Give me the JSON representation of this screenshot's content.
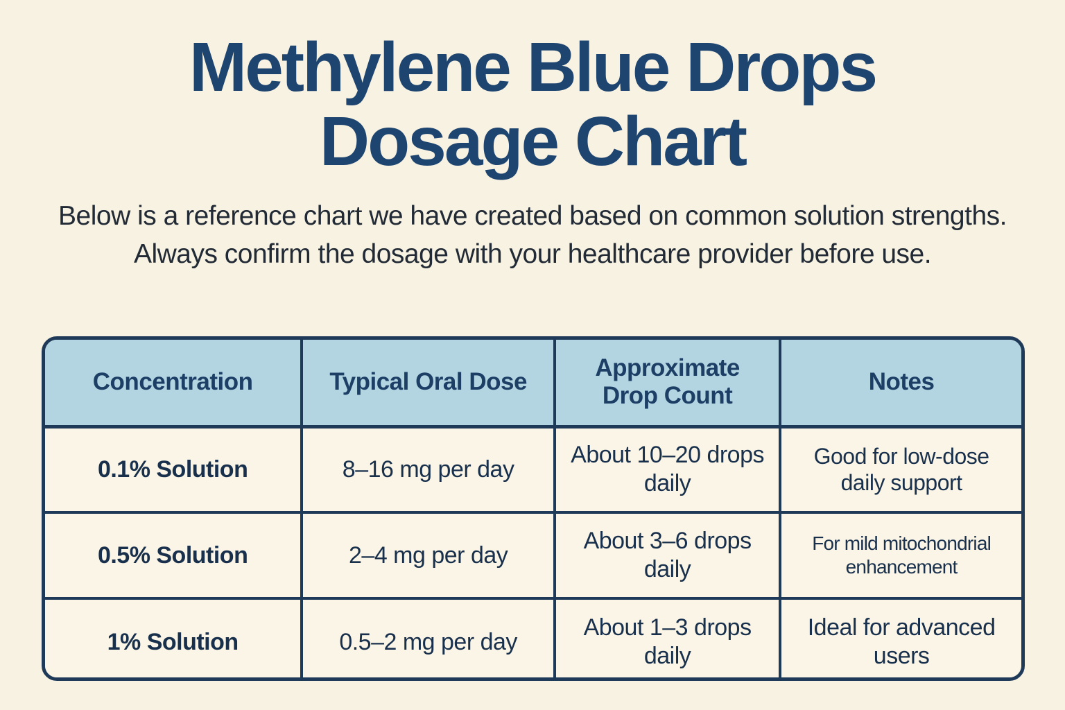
{
  "page": {
    "title_line1": "Methylene Blue Drops",
    "title_line2": "Dosage Chart",
    "subtitle": "Below is a reference chart we have created based on common solution strengths. Always confirm the dosage with your healthcare provider before use."
  },
  "colors": {
    "page_background": "#f7f2e2",
    "table_header_background": "#b3d5e2",
    "table_cell_background": "#faf5e6",
    "table_border": "#1f3a58",
    "title_text": "#1e4470",
    "subtitle_text": "#212a35",
    "header_text": "#1d3f66",
    "cell_text": "#19304d"
  },
  "chart_data": {
    "type": "table",
    "title": "Methylene Blue Drops Dosage Chart",
    "columns": [
      "Concentration",
      "Typical Oral Dose",
      "Approximate Drop Count",
      "Notes"
    ],
    "rows": [
      {
        "cells": [
          "0.1% Solution",
          "8–16 mg per day",
          "About 10–20 drops daily",
          "Good for low-dose daily support"
        ]
      },
      {
        "cells": [
          "0.5% Solution",
          "2–4 mg per day",
          "About 3–6 drops daily",
          "For mild mitochondrial enhancement"
        ]
      },
      {
        "cells": [
          "1% Solution",
          "0.5–2 mg per day",
          "About 1–3 drops daily",
          "Ideal for advanced users"
        ]
      }
    ]
  }
}
